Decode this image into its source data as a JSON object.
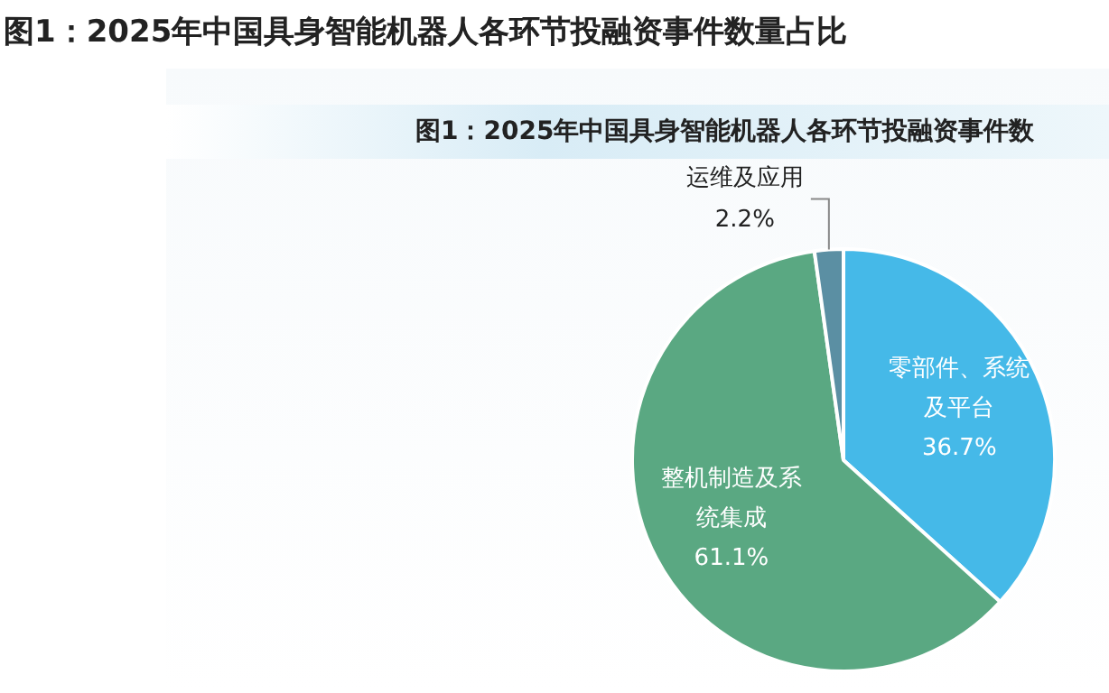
{
  "chart_data": {
    "type": "pie",
    "title": "图1：2025年中国具身智能机器人各环节投融资事件数量占比",
    "subtitle": "图1：2025年中国具身智能机器人各环节投融资事件数",
    "categories": [
      "零部件、系统及平台",
      "整机制造及系统集成",
      "运维及应用"
    ],
    "values": [
      36.7,
      61.1,
      2.2
    ],
    "colors": [
      "#45b9e8",
      "#5aa882",
      "#5b8fa3"
    ],
    "value_labels": [
      "36.7%",
      "61.1%",
      "2.2%"
    ],
    "legend": false
  }
}
